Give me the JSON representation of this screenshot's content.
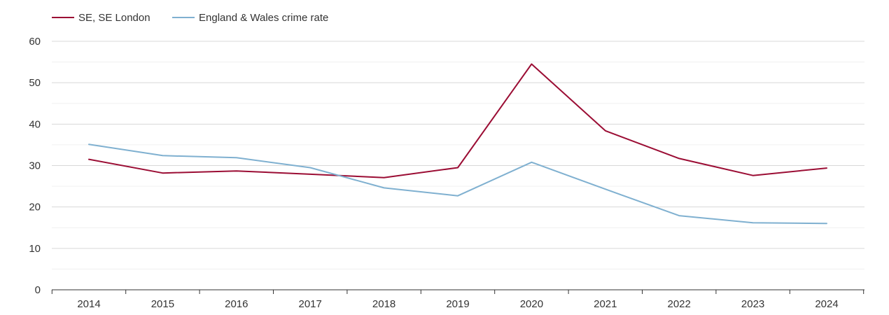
{
  "chart_data": {
    "type": "line",
    "title": "",
    "xlabel": "",
    "ylabel": "",
    "categories": [
      "2014",
      "2015",
      "2016",
      "2017",
      "2018",
      "2019",
      "2020",
      "2021",
      "2022",
      "2023",
      "2024"
    ],
    "ylim": [
      0,
      60
    ],
    "yticks": [
      0,
      10,
      20,
      30,
      40,
      50,
      60
    ],
    "grid": true,
    "legend_position": "top-left",
    "series": [
      {
        "name": "SE, SE London",
        "color": "#9b0d34",
        "values": [
          31.5,
          28.2,
          28.7,
          27.9,
          27.1,
          29.5,
          54.5,
          38.4,
          31.7,
          27.6,
          29.4
        ]
      },
      {
        "name": "England & Wales crime rate",
        "color": "#7fb0d0",
        "values": [
          35.1,
          32.4,
          31.9,
          29.5,
          24.6,
          22.7,
          30.8,
          24.3,
          17.9,
          16.2,
          16.0
        ]
      }
    ]
  }
}
